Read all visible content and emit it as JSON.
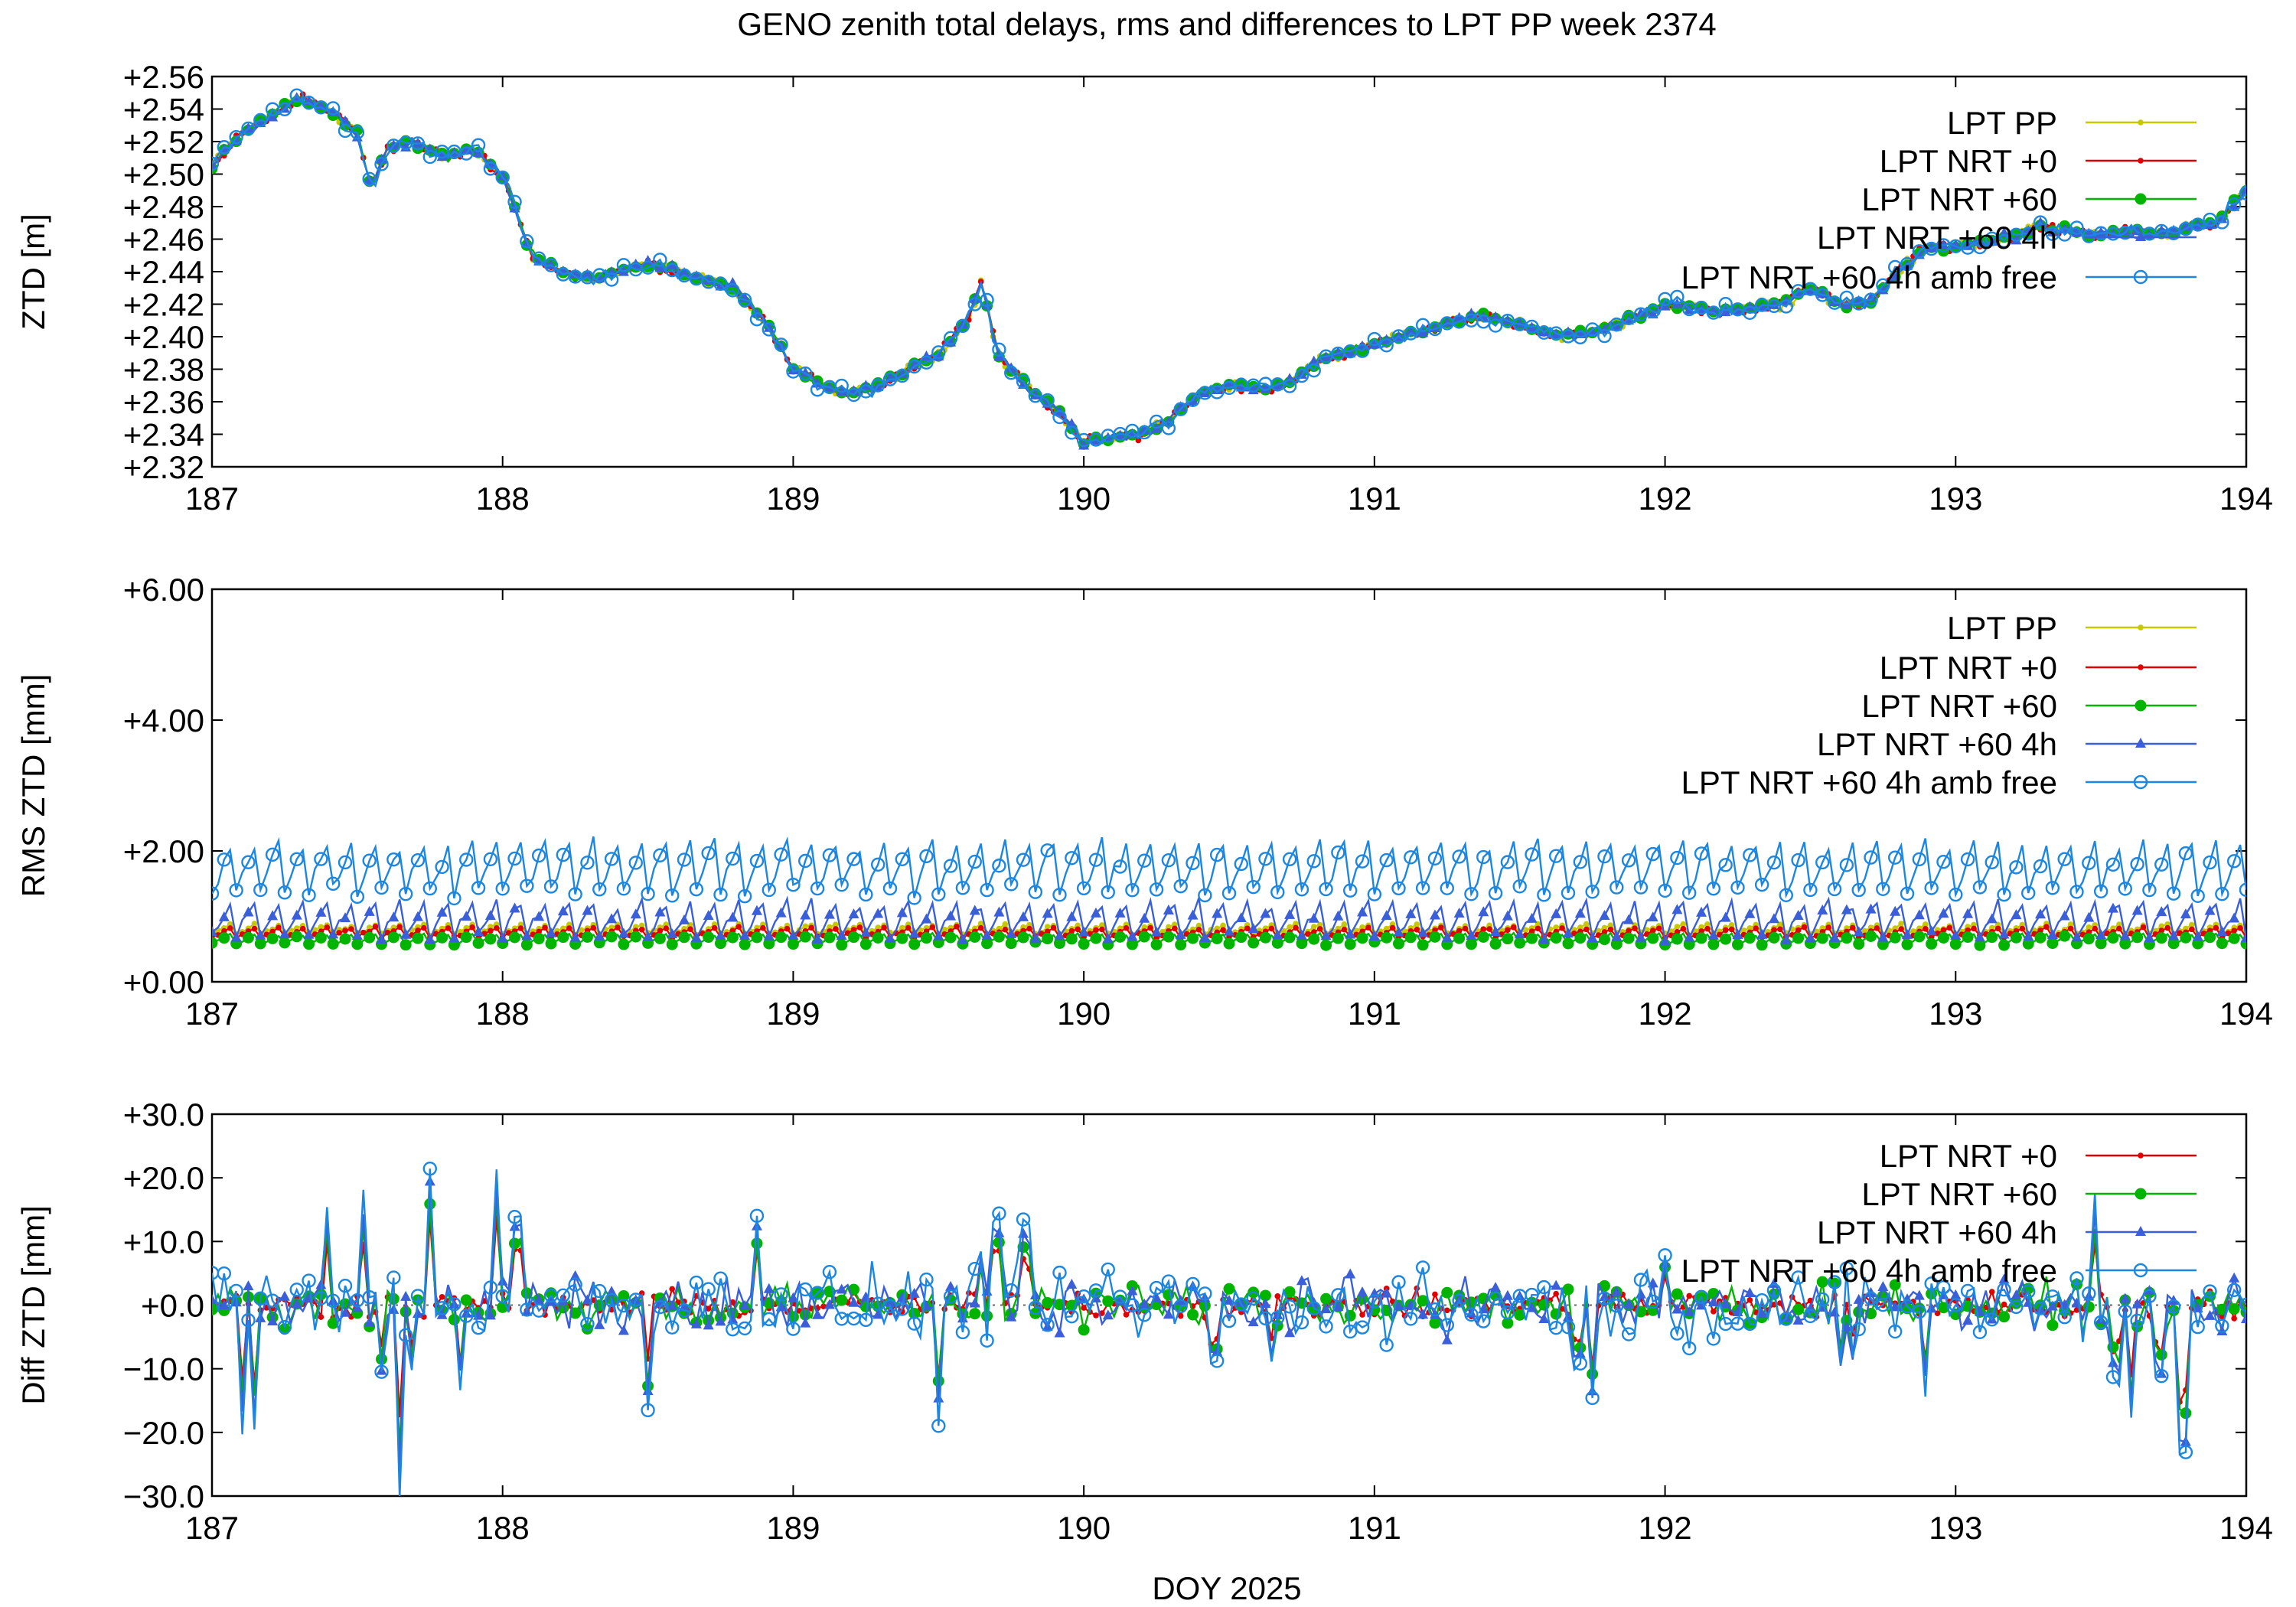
{
  "figure_title": "GENO zenith total delays, rms and differences to LPT PP week 2374",
  "shared_xlabel": "DOY 2025",
  "colors": {
    "LPT PP": "#c8c800",
    "LPT NRT +0": "#e00000",
    "LPT NRT +60": "#00b400",
    "LPT NRT +60 4h": "#3a5fd8",
    "LPT NRT +60 4h amb free": "#1c86e0"
  },
  "chart_data": [
    {
      "type": "line",
      "title": "",
      "xlabel": "",
      "ylabel": "ZTD [m]",
      "xlim": [
        187,
        194
      ],
      "ylim": [
        2.32,
        2.56
      ],
      "xticks": [
        "187",
        "188",
        "189",
        "190",
        "191",
        "192",
        "193",
        "194"
      ],
      "yticks": [
        "+2.32",
        "+2.34",
        "+2.36",
        "+2.38",
        "+2.40",
        "+2.42",
        "+2.44",
        "+2.46",
        "+2.48",
        "+2.50",
        "+2.52",
        "+2.54",
        "+2.56"
      ],
      "legend_position": "top-right",
      "series": [
        {
          "name": "LPT PP",
          "marker": "small-dot"
        },
        {
          "name": "LPT NRT +0",
          "marker": "small-dot"
        },
        {
          "name": "LPT NRT +60",
          "marker": "dot"
        },
        {
          "name": "LPT NRT +60 4h",
          "marker": "triangle"
        },
        {
          "name": "LPT NRT +60 4h amb free",
          "marker": "open-circle"
        }
      ],
      "base_curve": {
        "x": [
          187.0,
          187.1,
          187.2,
          187.3,
          187.4,
          187.5,
          187.55,
          187.6,
          187.7,
          187.8,
          187.9,
          188.0,
          188.1,
          188.2,
          188.3,
          188.4,
          188.5,
          188.6,
          188.7,
          188.8,
          188.9,
          189.0,
          189.1,
          189.2,
          189.3,
          189.4,
          189.5,
          189.6,
          189.65,
          189.7,
          189.8,
          189.9,
          190.0,
          190.1,
          190.2,
          190.3,
          190.4,
          190.5,
          190.6,
          190.7,
          190.8,
          190.9,
          191.0,
          191.1,
          191.2,
          191.3,
          191.4,
          191.5,
          191.6,
          191.7,
          191.8,
          191.9,
          192.0,
          192.1,
          192.2,
          192.3,
          192.4,
          192.5,
          192.6,
          192.7,
          192.8,
          192.9,
          193.0,
          193.1,
          193.2,
          193.3,
          193.4,
          193.5,
          193.6,
          193.7,
          193.8,
          193.9,
          194.0
        ],
        "y": [
          2.505,
          2.525,
          2.535,
          2.548,
          2.54,
          2.525,
          2.49,
          2.515,
          2.52,
          2.51,
          2.515,
          2.5,
          2.45,
          2.44,
          2.435,
          2.44,
          2.445,
          2.44,
          2.435,
          2.43,
          2.41,
          2.38,
          2.37,
          2.365,
          2.37,
          2.38,
          2.39,
          2.41,
          2.435,
          2.39,
          2.37,
          2.355,
          2.335,
          2.338,
          2.34,
          2.35,
          2.365,
          2.37,
          2.368,
          2.37,
          2.385,
          2.39,
          2.395,
          2.4,
          2.405,
          2.41,
          2.412,
          2.408,
          2.402,
          2.4,
          2.405,
          2.412,
          2.42,
          2.418,
          2.415,
          2.418,
          2.42,
          2.43,
          2.42,
          2.42,
          2.44,
          2.455,
          2.455,
          2.458,
          2.462,
          2.468,
          2.465,
          2.463,
          2.465,
          2.462,
          2.468,
          2.47,
          2.49
        ]
      }
    },
    {
      "type": "line",
      "title": "",
      "xlabel": "",
      "ylabel": "RMS ZTD [mm]",
      "xlim": [
        187,
        194
      ],
      "ylim": [
        0,
        6
      ],
      "xticks": [
        "187",
        "188",
        "189",
        "190",
        "191",
        "192",
        "193",
        "194"
      ],
      "yticks": [
        "+0.00",
        "+2.00",
        "+4.00",
        "+6.00"
      ],
      "legend_position": "top-right",
      "series": [
        {
          "name": "LPT PP",
          "marker": "small-dot",
          "level": 0.8,
          "spread": 0.1
        },
        {
          "name": "LPT NRT +0",
          "marker": "small-dot",
          "level": 0.75,
          "spread": 0.1
        },
        {
          "name": "LPT NRT +60",
          "marker": "dot",
          "level": 0.65,
          "spread": 0.1
        },
        {
          "name": "LPT NRT +60 4h",
          "marker": "triangle",
          "level": 0.95,
          "spread": 0.35
        },
        {
          "name": "LPT NRT +60 4h amb free",
          "marker": "open-circle",
          "level": 1.75,
          "spread": 0.5
        }
      ]
    },
    {
      "type": "line",
      "title": "",
      "xlabel": "DOY 2025",
      "ylabel": "Diff ZTD [mm]",
      "xlim": [
        187,
        194
      ],
      "ylim": [
        -30,
        30
      ],
      "xticks": [
        "187",
        "188",
        "189",
        "190",
        "191",
        "192",
        "193",
        "194"
      ],
      "yticks": [
        "−30.0",
        "−20.0",
        "−10.0",
        "+0.0",
        "+10.0",
        "+20.0",
        "+30.0"
      ],
      "zero_line": true,
      "legend_position": "top-right",
      "series": [
        {
          "name": "LPT NRT +0",
          "marker": "small-dot",
          "spread": 3
        },
        {
          "name": "LPT NRT +60",
          "marker": "dot",
          "spread": 5
        },
        {
          "name": "LPT NRT +60 4h",
          "marker": "triangle",
          "spread": 6
        },
        {
          "name": "LPT NRT +60 4h amb free",
          "marker": "open-circle",
          "spread": 8
        }
      ],
      "extremes": {
        "x": [
          187.1,
          187.15,
          187.4,
          187.52,
          187.58,
          187.64,
          187.68,
          187.75,
          187.85,
          187.98,
          188.05,
          188.5,
          188.87,
          189.5,
          189.64,
          189.7,
          189.8,
          190.45,
          190.65,
          191.7,
          191.75,
          192.0,
          192.6,
          192.65,
          192.9,
          193.48,
          193.55,
          193.6,
          193.7,
          193.78
        ],
        "y": [
          -20,
          -19.5,
          16,
          18,
          -11,
          -30,
          -10,
          21,
          -13,
          22,
          14,
          -16,
          14,
          -18,
          9,
          14,
          12,
          -9,
          -10,
          -9,
          -15.5,
          8,
          -10,
          -9,
          -13.5,
          17,
          -11,
          -17.5,
          -11,
          -23.5
        ]
      }
    }
  ]
}
